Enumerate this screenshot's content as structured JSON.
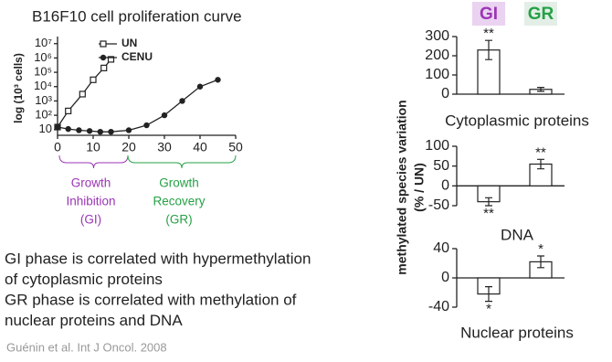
{
  "title": "B16F10 cell proliferation curve",
  "phases": [
    {
      "lines": [
        "Growth",
        "Inhibition",
        "(GI)"
      ],
      "color": "#9b35b5"
    },
    {
      "lines": [
        "Growth",
        "Recovery",
        "(GR)"
      ],
      "color": "#25a046"
    }
  ],
  "groups": [
    {
      "label": "GI",
      "color": "#9b35b5",
      "background": "#ead3f1"
    },
    {
      "label": "GR",
      "color": "#25a046",
      "background": "#e3efe6"
    }
  ],
  "shared_ylabel": [
    "methylated species variation",
    "(% / UN)"
  ],
  "statements": [
    "GI phase is correlated with hypermethylation",
    "of cytoplasmic proteins",
    "GR phase is correlated with methylation of",
    "nuclear proteins and DNA"
  ],
  "citation": "Guénin et al. Int J Oncol. 2008",
  "chart_data": [
    {
      "type": "line",
      "ylabel": "log (10³ cells)",
      "log_y": true,
      "xlim": [
        0,
        50
      ],
      "xticks": [
        0,
        10,
        20,
        30,
        40,
        50
      ],
      "ylim": [
        4,
        15000000
      ],
      "yticks": [
        10,
        {
          "value": 100,
          "label": "10²"
        },
        {
          "value": 1000,
          "label": "10³"
        },
        {
          "value": 10000,
          "label": "10⁴"
        },
        {
          "value": 100000,
          "label": "10⁵"
        },
        {
          "value": 1000000,
          "label": "10⁶"
        },
        {
          "value": 10000000,
          "label": "10⁷"
        }
      ],
      "series": [
        {
          "name": "UN",
          "color": "#222",
          "marker": "square",
          "x": [
            0,
            3,
            7,
            10,
            13,
            15
          ],
          "values": [
            15,
            200,
            3000,
            30000,
            200000,
            800000
          ]
        },
        {
          "name": "CENU",
          "color": "#222",
          "marker": "circle",
          "x": [
            0,
            3,
            6,
            9,
            12,
            15,
            20,
            25,
            30,
            35,
            40,
            45
          ],
          "values": [
            15,
            11,
            9,
            8,
            7,
            7,
            9,
            20,
            100,
            1000,
            10000,
            30000
          ]
        }
      ]
    },
    {
      "type": "bar",
      "title": "Cytoplasmic proteins",
      "ylim": [
        0,
        300
      ],
      "yticks": [
        0,
        100,
        200,
        300
      ],
      "values": [
        230,
        25
      ],
      "errors": [
        50,
        10
      ],
      "annotations": [
        "**",
        null
      ]
    },
    {
      "type": "bar",
      "title": "DNA",
      "ylim": [
        -50,
        100
      ],
      "yticks": [
        -50,
        0,
        50,
        100
      ],
      "values": [
        -40,
        55
      ],
      "errors": [
        10,
        12
      ],
      "annotations": [
        "**",
        "**"
      ]
    },
    {
      "type": "bar",
      "title": "Nuclear proteins",
      "ylim": [
        -40,
        40
      ],
      "yticks": [
        -40,
        0,
        40
      ],
      "values": [
        -22,
        22
      ],
      "errors": [
        10,
        8
      ],
      "annotations": [
        "*",
        "*"
      ]
    }
  ]
}
